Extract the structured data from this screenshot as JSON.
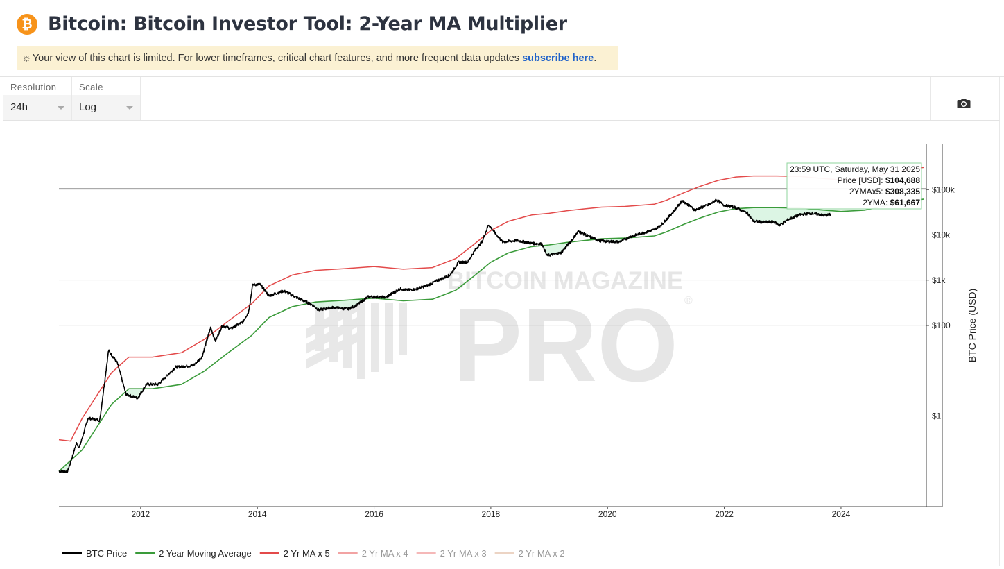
{
  "header": {
    "logo_glyph": "₿",
    "title": "Bitcoin: Bitcoin Investor Tool: 2-Year MA Multiplier"
  },
  "notice": {
    "icon": "sun-icon",
    "text": "Your view of this chart is limited. For lower timeframes, critical chart features, and more frequent data updates ",
    "link_text": "subscribe here",
    "suffix": "."
  },
  "controls": {
    "resolution": {
      "label": "Resolution",
      "value": "24h"
    },
    "scale": {
      "label": "Scale",
      "value": "Log"
    },
    "screenshot_icon": "camera-icon"
  },
  "watermark": {
    "line1": "BITCOIN MAGAZINE",
    "line2": "PRO",
    "mark": "®"
  },
  "tooltip": {
    "time": "23:59 UTC, Saturday, May 31 2025",
    "rows": [
      {
        "label": "Price [USD]: ",
        "value": "$104,688"
      },
      {
        "label": "2YMAx5: ",
        "value": "$308,335"
      },
      {
        "label": "2YMA: ",
        "value": "$61,667"
      }
    ]
  },
  "colors": {
    "btc_price": "#000000",
    "ma": "#3a9b3a",
    "ma_x5": "#e34a4a",
    "ma_x4": "#f2a3a3",
    "ma_x3": "#f5b8b8",
    "ma_x2": "#ecd4c4",
    "fill": "#d6f3df"
  },
  "chart_data": {
    "type": "line",
    "xlabel": "",
    "ylabel": "BTC Price (USD)",
    "yscale": "log",
    "ylim": [
      0.01,
      1000000
    ],
    "xlim": [
      2010.6,
      2025.45
    ],
    "x_ticks": [
      "2012",
      "2014",
      "2016",
      "2018",
      "2020",
      "2022",
      "2024"
    ],
    "y_ticks": [
      {
        "value": 1,
        "label": "$1"
      },
      {
        "value": 100,
        "label": "$100"
      },
      {
        "value": 1000,
        "label": "$1k"
      },
      {
        "value": 10000,
        "label": "$10k"
      },
      {
        "value": 100000,
        "label": "$100k"
      }
    ],
    "hover_price": 104688,
    "legend_position": "bottom",
    "series": [
      {
        "name": "BTC Price",
        "x": [
          2010.6,
          2010.75,
          2010.9,
          2010.95,
          2011.1,
          2011.3,
          2011.45,
          2011.6,
          2011.75,
          2011.95,
          2012.1,
          2012.3,
          2012.6,
          2012.9,
          2013.05,
          2013.2,
          2013.28,
          2013.4,
          2013.55,
          2013.75,
          2013.85,
          2013.92,
          2014.05,
          2014.2,
          2014.45,
          2014.7,
          2014.95,
          2015.05,
          2015.3,
          2015.55,
          2015.7,
          2015.9,
          2016.2,
          2016.45,
          2016.55,
          2016.7,
          2016.9,
          2017.1,
          2017.3,
          2017.45,
          2017.6,
          2017.75,
          2017.85,
          2017.96,
          2018.1,
          2018.2,
          2018.45,
          2018.7,
          2018.88,
          2018.96,
          2019.2,
          2019.4,
          2019.5,
          2019.7,
          2019.85,
          2019.95,
          2020.2,
          2020.4,
          2020.6,
          2020.8,
          2020.95,
          2021.15,
          2021.28,
          2021.5,
          2021.6,
          2021.75,
          2021.86,
          2022.0,
          2022.2,
          2022.4,
          2022.5,
          2022.7,
          2022.85,
          2022.95,
          2023.1,
          2023.3,
          2023.5,
          2023.7,
          2023.82
        ],
        "values": [
          0.06,
          0.06,
          0.25,
          0.2,
          0.9,
          0.8,
          28,
          15,
          3,
          2.5,
          5,
          5,
          12,
          13,
          20,
          90,
          45,
          100,
          85,
          120,
          200,
          800,
          800,
          450,
          580,
          400,
          280,
          220,
          250,
          230,
          280,
          430,
          420,
          650,
          600,
          630,
          750,
          1000,
          1300,
          2500,
          2500,
          5000,
          7000,
          17000,
          10000,
          7000,
          7500,
          6500,
          6300,
          3500,
          4000,
          8000,
          12000,
          9000,
          7500,
          7200,
          7000,
          9200,
          11000,
          13000,
          18000,
          35000,
          58000,
          35000,
          40000,
          47000,
          60000,
          45000,
          40000,
          30000,
          20000,
          19000,
          19500,
          16500,
          22000,
          28000,
          30000,
          27000,
          28000
        ]
      },
      {
        "name": "2 Year Moving Average",
        "x": [
          2010.6,
          2011.0,
          2011.5,
          2011.8,
          2012.2,
          2012.7,
          2013.1,
          2013.5,
          2013.9,
          2014.2,
          2014.6,
          2015.0,
          2015.5,
          2016.0,
          2016.5,
          2017.0,
          2017.4,
          2017.7,
          2018.0,
          2018.3,
          2018.7,
          2019.0,
          2019.3,
          2019.6,
          2019.9,
          2020.3,
          2020.8,
          2021.0,
          2021.3,
          2021.6,
          2021.9,
          2022.2,
          2022.5,
          2022.9,
          2023.3,
          2023.6,
          2024.0,
          2024.4,
          2024.7,
          2025.0,
          2025.42
        ],
        "values": [
          0.06,
          0.18,
          1.8,
          4,
          4,
          5,
          10,
          25,
          60,
          150,
          260,
          330,
          360,
          400,
          350,
          380,
          600,
          1200,
          2500,
          4000,
          5500,
          6000,
          6800,
          7500,
          8200,
          8500,
          9500,
          11500,
          17000,
          24000,
          32000,
          38000,
          40000,
          40000,
          39000,
          36000,
          33000,
          35000,
          42000,
          52000,
          61667
        ]
      },
      {
        "name": "2 Yr MA x 5",
        "x": [
          2010.6,
          2010.8,
          2011.0,
          2011.5,
          2011.8,
          2012.2,
          2012.7,
          2013.1,
          2013.5,
          2013.9,
          2014.2,
          2014.6,
          2015.0,
          2015.5,
          2016.0,
          2016.5,
          2017.0,
          2017.4,
          2017.7,
          2018.0,
          2018.3,
          2018.7,
          2019.0,
          2019.3,
          2019.6,
          2019.9,
          2020.3,
          2020.8,
          2021.0,
          2021.3,
          2021.6,
          2021.9,
          2022.2,
          2022.5,
          2022.9,
          2023.3,
          2023.6,
          2024.0,
          2024.4,
          2024.7,
          2025.0,
          2025.42
        ],
        "values": [
          0.3,
          0.28,
          0.9,
          9,
          20,
          20,
          25,
          50,
          125,
          300,
          750,
          1300,
          1650,
          1800,
          2000,
          1750,
          1900,
          3000,
          6000,
          12500,
          20000,
          27500,
          30000,
          34000,
          37500,
          41000,
          42500,
          47500,
          57500,
          85000,
          120000,
          160000,
          190000,
          200000,
          200000,
          195000,
          180000,
          165000,
          175000,
          210000,
          260000,
          308335
        ]
      },
      {
        "name": "2 Yr MA x 4",
        "x": [],
        "values": []
      },
      {
        "name": "2 Yr MA x 3",
        "x": [],
        "values": []
      },
      {
        "name": "2 Yr MA x 2",
        "x": [],
        "values": []
      }
    ]
  }
}
